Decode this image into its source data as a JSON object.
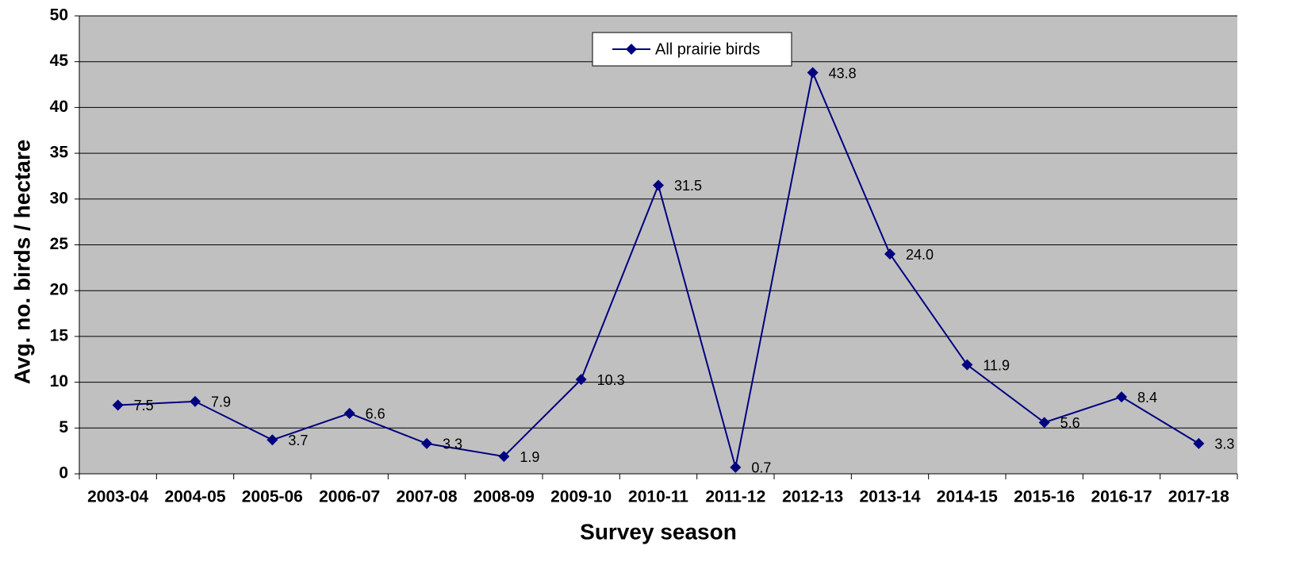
{
  "chart_data": {
    "type": "line",
    "x_label": "Survey season",
    "y_label": "Avg. no. birds / hectare",
    "categories": [
      "2003-04",
      "2004-05",
      "2005-06",
      "2006-07",
      "2007-08",
      "2008-09",
      "2009-10",
      "2010-11",
      "2011-12",
      "2012-13",
      "2013-14",
      "2014-15",
      "2015-16",
      "2016-17",
      "2017-18"
    ],
    "series": [
      {
        "name": "All prairie birds",
        "color": "#000080",
        "values": [
          7.5,
          7.9,
          3.7,
          6.6,
          3.3,
          1.9,
          10.3,
          31.5,
          0.7,
          43.8,
          24.0,
          11.9,
          5.6,
          8.4,
          3.3
        ],
        "value_labels": [
          "7.5",
          "7.9",
          "3.7",
          "6.6",
          "3.3",
          "1.9",
          "10.3",
          "31.5",
          "0.7",
          "43.8",
          "24.0",
          "11.9",
          "5.6",
          "8.4",
          "3.3"
        ]
      }
    ],
    "ylim": [
      0,
      50
    ],
    "yticks": [
      0,
      5,
      10,
      15,
      20,
      25,
      30,
      35,
      40,
      45,
      50
    ],
    "grid": true,
    "legend": "top"
  }
}
